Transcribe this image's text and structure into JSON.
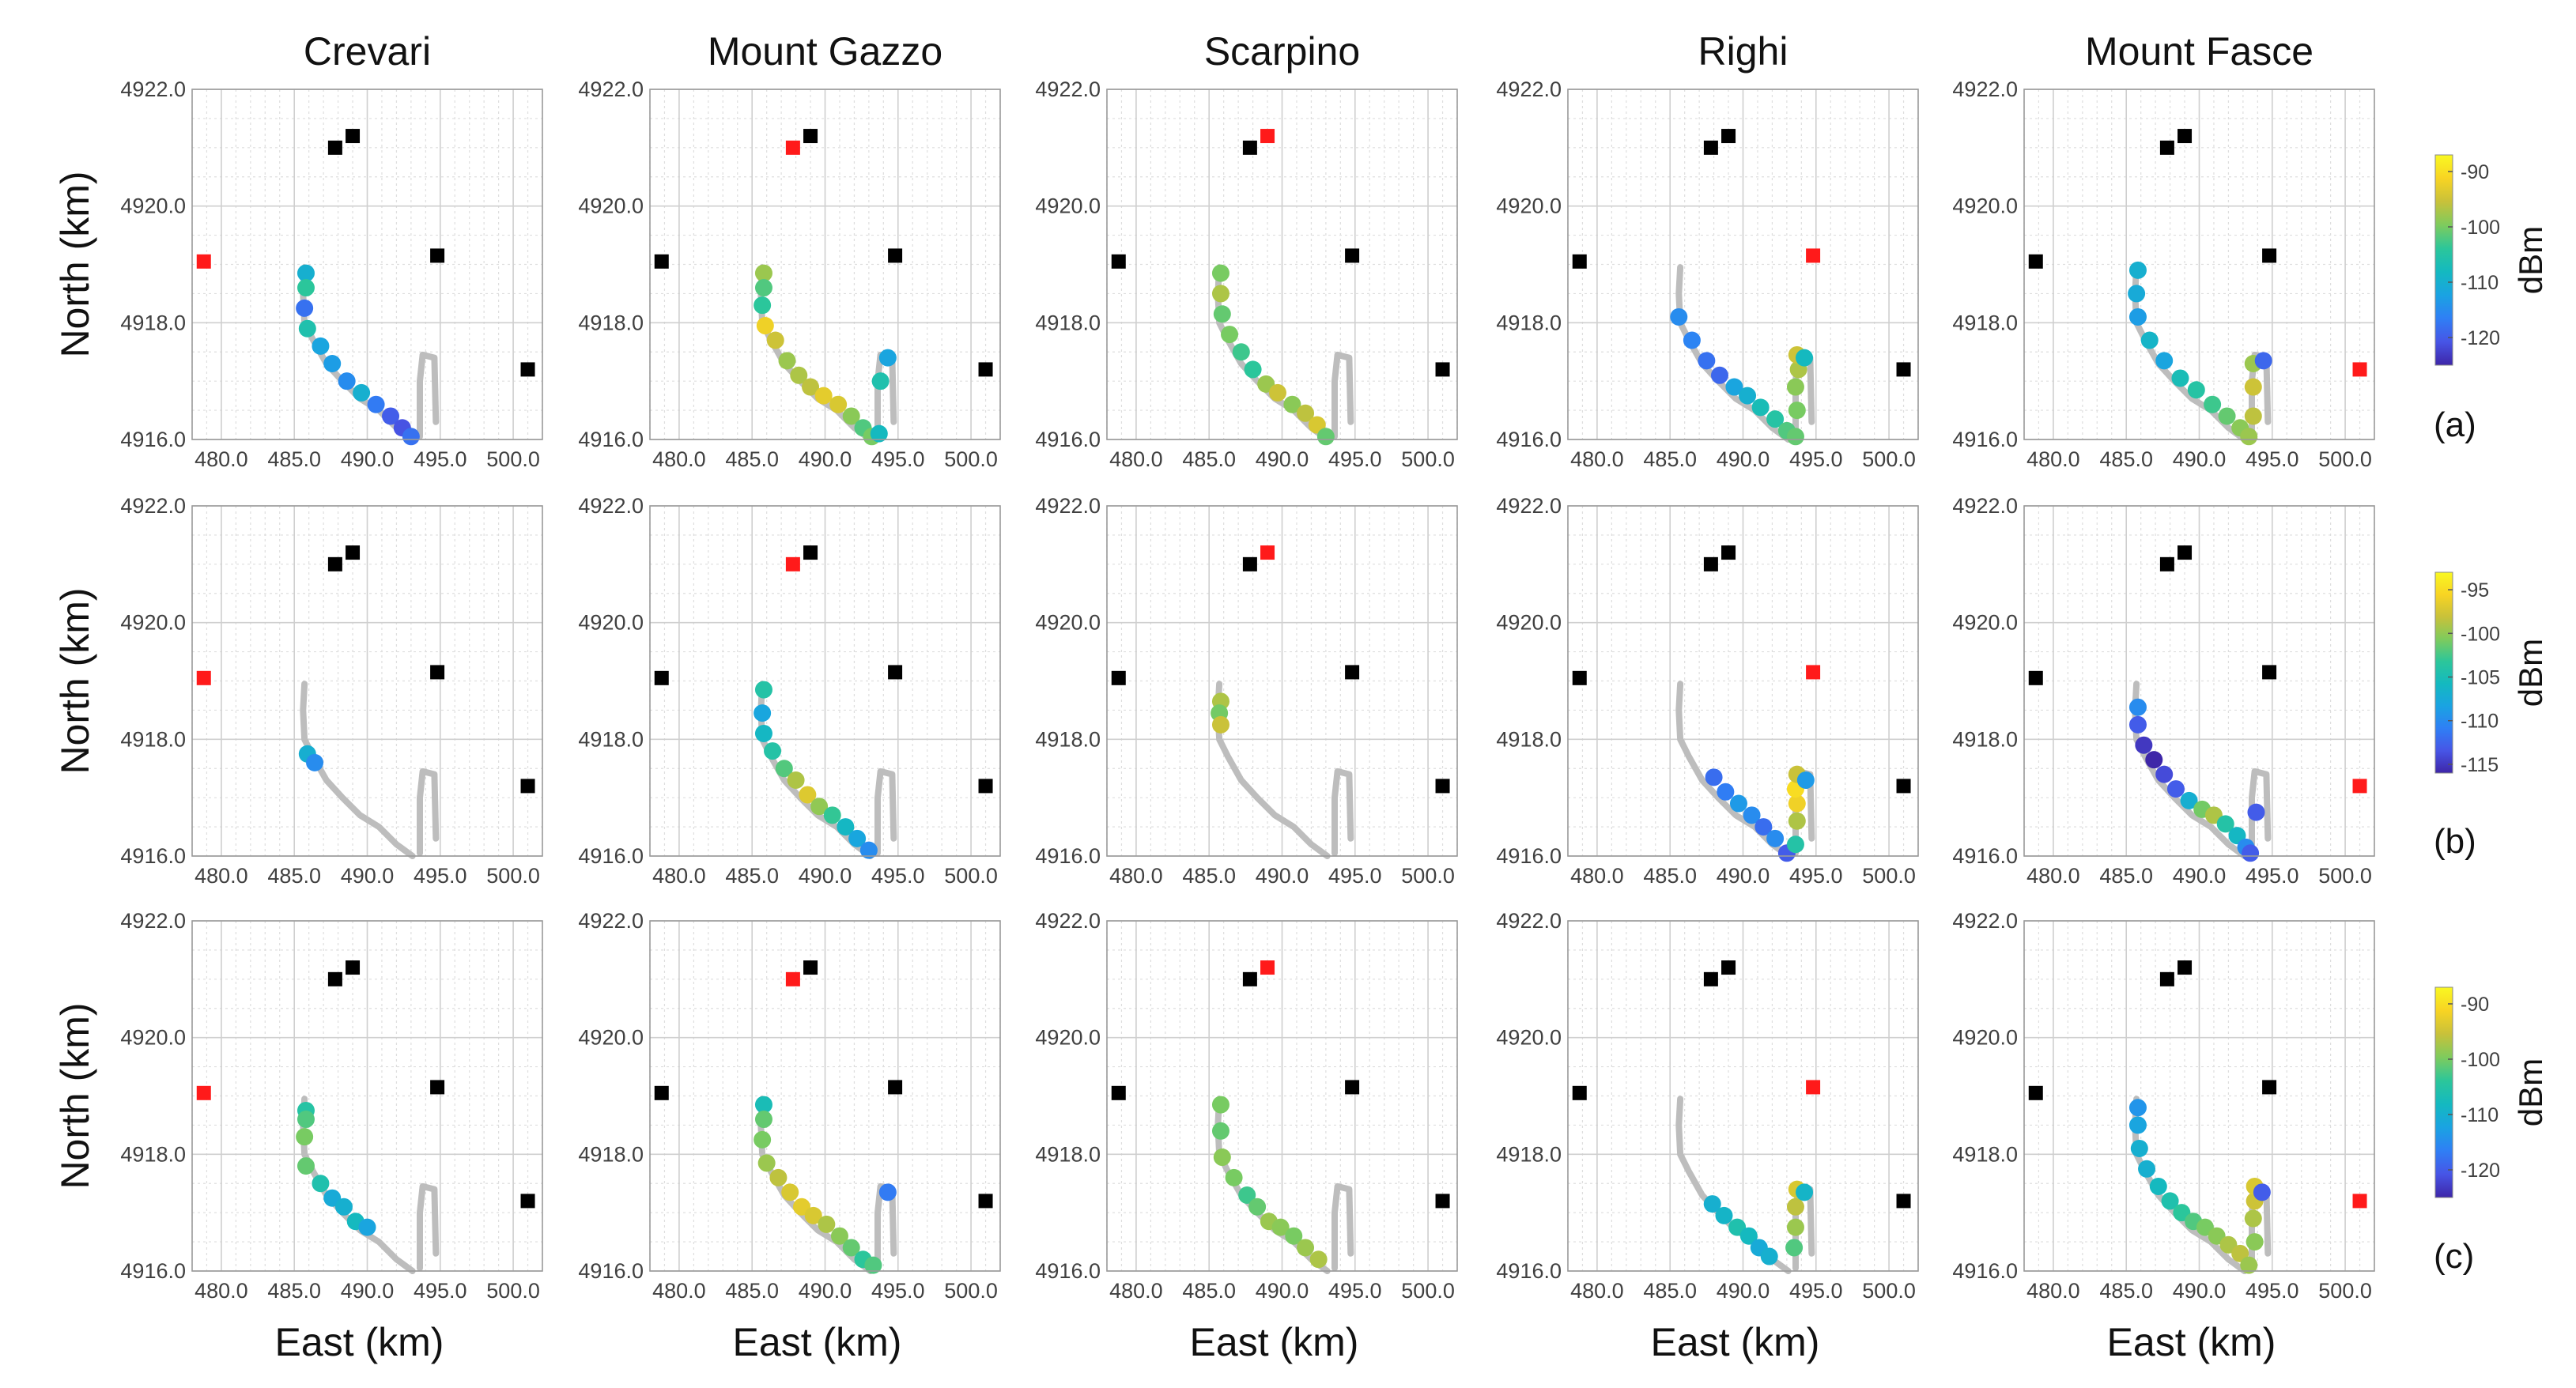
{
  "chart_data": {
    "type": "scatter",
    "description_kind": "received signal strength maps along a route, one panel per transmitter site and scenario",
    "columns": [
      "Crevari",
      "Mount Gazzo",
      "Scarpino",
      "Righi",
      "Mount Fasce"
    ],
    "rows": [
      {
        "label": "(a)",
        "colorbar": {
          "ticks": [
            -90,
            -100,
            -110,
            -120
          ],
          "min": -125,
          "max": -87,
          "unit": "dBm"
        }
      },
      {
        "label": "(b)",
        "colorbar": {
          "ticks": [
            -95,
            -100,
            -105,
            -110,
            -115
          ],
          "min": -116,
          "max": -93,
          "unit": "dBm"
        }
      },
      {
        "label": "(c)",
        "colorbar": {
          "ticks": [
            -90,
            -100,
            -110,
            -120
          ],
          "min": -125,
          "max": -87,
          "unit": "dBm"
        }
      }
    ],
    "xlabel": "East (km)",
    "ylabel": "North (km)",
    "xlim": [
      478.0,
      502.0
    ],
    "ylim": [
      4916.0,
      4922.0
    ],
    "xticks": [
      "480.0",
      "485.0",
      "490.0",
      "495.0",
      "500.0"
    ],
    "yticks": [
      "4922.0",
      "4920.0",
      "4918.0",
      "4916.0"
    ],
    "grid": true,
    "transmitters": [
      {
        "name": "Crevari",
        "x": 478.8,
        "y": 4919.05
      },
      {
        "name": "Mount Gazzo",
        "x": 487.8,
        "y": 4921.0
      },
      {
        "name": "Scarpino",
        "x": 489.0,
        "y": 4921.2
      },
      {
        "name": "Righi",
        "x": 494.8,
        "y": 4919.15
      },
      {
        "name": "Mount Fasce",
        "x": 501.0,
        "y": 4917.2
      }
    ],
    "route_main": [
      [
        485.7,
        4918.95
      ],
      [
        485.6,
        4918.5
      ],
      [
        485.7,
        4918.0
      ],
      [
        486.3,
        4917.7
      ],
      [
        487.2,
        4917.3
      ],
      [
        488.3,
        4917.0
      ],
      [
        489.5,
        4916.7
      ],
      [
        490.8,
        4916.5
      ],
      [
        492.0,
        4916.2
      ],
      [
        493.1,
        4916.0
      ]
    ],
    "route_branch": [
      [
        493.6,
        4916.05
      ],
      [
        493.6,
        4917.0
      ],
      [
        493.8,
        4917.45
      ],
      [
        494.6,
        4917.4
      ],
      [
        494.7,
        4916.3
      ]
    ],
    "series": [
      {
        "row": 0,
        "col": 0,
        "points": [
          [
            485.8,
            4918.85,
            -110
          ],
          [
            485.8,
            4918.6,
            -104
          ],
          [
            485.7,
            4918.25,
            -118
          ],
          [
            485.9,
            4917.9,
            -106
          ],
          [
            486.8,
            4917.6,
            -112
          ],
          [
            487.6,
            4917.3,
            -113
          ],
          [
            488.6,
            4917.0,
            -115
          ],
          [
            489.6,
            4916.8,
            -110
          ],
          [
            490.6,
            4916.6,
            -117
          ],
          [
            491.6,
            4916.4,
            -120
          ],
          [
            492.4,
            4916.2,
            -121
          ],
          [
            493.0,
            4916.05,
            -118
          ]
        ]
      },
      {
        "row": 0,
        "col": 1,
        "points": [
          [
            485.8,
            4918.85,
            -98
          ],
          [
            485.8,
            4918.6,
            -102
          ],
          [
            485.7,
            4918.3,
            -104
          ],
          [
            485.9,
            4917.95,
            -92
          ],
          [
            486.6,
            4917.7,
            -95
          ],
          [
            487.4,
            4917.35,
            -98
          ],
          [
            488.2,
            4917.1,
            -97
          ],
          [
            489.0,
            4916.9,
            -96
          ],
          [
            489.9,
            4916.75,
            -93
          ],
          [
            490.9,
            4916.6,
            -94
          ],
          [
            491.8,
            4916.4,
            -99
          ],
          [
            492.6,
            4916.2,
            -102
          ],
          [
            493.2,
            4916.05,
            -100
          ],
          [
            493.7,
            4916.1,
            -108
          ],
          [
            493.8,
            4917.0,
            -106
          ],
          [
            494.3,
            4917.4,
            -112
          ]
        ]
      },
      {
        "row": 0,
        "col": 2,
        "points": [
          [
            485.8,
            4918.85,
            -100
          ],
          [
            485.8,
            4918.5,
            -97
          ],
          [
            485.9,
            4918.15,
            -101
          ],
          [
            486.4,
            4917.8,
            -100
          ],
          [
            487.2,
            4917.5,
            -103
          ],
          [
            488.0,
            4917.2,
            -104
          ],
          [
            488.9,
            4916.95,
            -98
          ],
          [
            489.7,
            4916.8,
            -95
          ],
          [
            490.7,
            4916.6,
            -99
          ],
          [
            491.6,
            4916.45,
            -96
          ],
          [
            492.4,
            4916.25,
            -94
          ],
          [
            493.0,
            4916.05,
            -101
          ]
        ]
      },
      {
        "row": 0,
        "col": 3,
        "points": [
          [
            485.6,
            4918.1,
            -115
          ],
          [
            486.5,
            4917.7,
            -116
          ],
          [
            487.5,
            4917.35,
            -118
          ],
          [
            488.4,
            4917.1,
            -119
          ],
          [
            489.4,
            4916.9,
            -112
          ],
          [
            490.3,
            4916.75,
            -110
          ],
          [
            491.2,
            4916.55,
            -107
          ],
          [
            492.2,
            4916.35,
            -105
          ],
          [
            493.0,
            4916.15,
            -102
          ],
          [
            493.6,
            4916.05,
            -101
          ],
          [
            493.7,
            4916.5,
            -100
          ],
          [
            493.6,
            4916.9,
            -99
          ],
          [
            493.8,
            4917.2,
            -97
          ],
          [
            493.7,
            4917.45,
            -95
          ],
          [
            494.2,
            4917.4,
            -108
          ]
        ]
      },
      {
        "row": 0,
        "col": 4,
        "points": [
          [
            485.8,
            4918.9,
            -110
          ],
          [
            485.7,
            4918.5,
            -111
          ],
          [
            485.8,
            4918.1,
            -113
          ],
          [
            486.6,
            4917.7,
            -109
          ],
          [
            487.6,
            4917.35,
            -112
          ],
          [
            488.7,
            4917.05,
            -107
          ],
          [
            489.8,
            4916.85,
            -105
          ],
          [
            490.9,
            4916.6,
            -103
          ],
          [
            491.9,
            4916.4,
            -101
          ],
          [
            492.8,
            4916.2,
            -99
          ],
          [
            493.4,
            4916.05,
            -98
          ],
          [
            493.7,
            4916.4,
            -96
          ],
          [
            493.7,
            4916.9,
            -95
          ],
          [
            493.7,
            4917.3,
            -98
          ],
          [
            494.4,
            4917.35,
            -119
          ]
        ]
      },
      {
        "row": 1,
        "col": 0,
        "points": [
          [
            485.9,
            4917.75,
            -107
          ],
          [
            486.4,
            4917.6,
            -110
          ]
        ]
      },
      {
        "row": 1,
        "col": 1,
        "points": [
          [
            485.8,
            4918.85,
            -104
          ],
          [
            485.7,
            4918.45,
            -108
          ],
          [
            485.8,
            4918.1,
            -106
          ],
          [
            486.4,
            4917.8,
            -104
          ],
          [
            487.2,
            4917.5,
            -102
          ],
          [
            488.0,
            4917.3,
            -99
          ],
          [
            488.8,
            4917.05,
            -97
          ],
          [
            489.6,
            4916.85,
            -100
          ],
          [
            490.5,
            4916.7,
            -103
          ],
          [
            491.4,
            4916.5,
            -106
          ],
          [
            492.2,
            4916.3,
            -108
          ],
          [
            493.0,
            4916.1,
            -110
          ]
        ]
      },
      {
        "row": 1,
        "col": 2,
        "points": [
          [
            485.8,
            4918.65,
            -99
          ],
          [
            485.7,
            4918.45,
            -101
          ],
          [
            485.8,
            4918.25,
            -98
          ]
        ]
      },
      {
        "row": 1,
        "col": 3,
        "points": [
          [
            488.0,
            4917.35,
            -112
          ],
          [
            488.8,
            4917.1,
            -111
          ],
          [
            489.7,
            4916.9,
            -109
          ],
          [
            490.6,
            4916.7,
            -110
          ],
          [
            491.4,
            4916.5,
            -112
          ],
          [
            492.2,
            4916.3,
            -110
          ],
          [
            493.0,
            4916.05,
            -113
          ],
          [
            493.6,
            4916.2,
            -104
          ],
          [
            493.7,
            4916.6,
            -99
          ],
          [
            493.7,
            4916.9,
            -96
          ],
          [
            493.6,
            4917.15,
            -95
          ],
          [
            493.7,
            4917.4,
            -98
          ],
          [
            494.3,
            4917.3,
            -109
          ]
        ]
      },
      {
        "row": 1,
        "col": 4,
        "points": [
          [
            485.8,
            4918.55,
            -110
          ],
          [
            485.8,
            4918.25,
            -113
          ],
          [
            486.2,
            4917.9,
            -115
          ],
          [
            486.9,
            4917.65,
            -116
          ],
          [
            487.6,
            4917.4,
            -114
          ],
          [
            488.4,
            4917.15,
            -113
          ],
          [
            489.3,
            4916.95,
            -107
          ],
          [
            490.2,
            4916.8,
            -101
          ],
          [
            491.0,
            4916.7,
            -99
          ],
          [
            491.8,
            4916.55,
            -104
          ],
          [
            492.6,
            4916.35,
            -106
          ],
          [
            493.2,
            4916.15,
            -110
          ],
          [
            493.5,
            4916.05,
            -113
          ],
          [
            493.9,
            4916.75,
            -113
          ]
        ]
      },
      {
        "row": 2,
        "col": 0,
        "points": [
          [
            485.8,
            4918.75,
            -105
          ],
          [
            485.8,
            4918.6,
            -102
          ],
          [
            485.7,
            4918.3,
            -100
          ],
          [
            485.8,
            4917.8,
            -101
          ],
          [
            486.8,
            4917.5,
            -106
          ],
          [
            487.6,
            4917.25,
            -111
          ],
          [
            488.4,
            4917.1,
            -110
          ],
          [
            489.2,
            4916.85,
            -108
          ],
          [
            490.0,
            4916.75,
            -112
          ]
        ]
      },
      {
        "row": 2,
        "col": 1,
        "points": [
          [
            485.8,
            4918.85,
            -107
          ],
          [
            485.8,
            4918.6,
            -101
          ],
          [
            485.7,
            4918.25,
            -100
          ],
          [
            486.0,
            4917.85,
            -98
          ],
          [
            486.8,
            4917.6,
            -96
          ],
          [
            487.6,
            4917.35,
            -94
          ],
          [
            488.4,
            4917.1,
            -93
          ],
          [
            489.2,
            4916.95,
            -94
          ],
          [
            490.1,
            4916.8,
            -97
          ],
          [
            491.0,
            4916.6,
            -99
          ],
          [
            491.8,
            4916.4,
            -101
          ],
          [
            492.6,
            4916.2,
            -104
          ],
          [
            493.3,
            4916.1,
            -102
          ],
          [
            494.3,
            4917.35,
            -117
          ]
        ]
      },
      {
        "row": 2,
        "col": 2,
        "points": [
          [
            485.8,
            4918.85,
            -100
          ],
          [
            485.8,
            4918.4,
            -101
          ],
          [
            485.9,
            4917.95,
            -99
          ],
          [
            486.7,
            4917.6,
            -100
          ],
          [
            487.6,
            4917.3,
            -103
          ],
          [
            488.3,
            4917.1,
            -101
          ],
          [
            489.1,
            4916.85,
            -98
          ],
          [
            489.9,
            4916.75,
            -99
          ],
          [
            490.8,
            4916.6,
            -100
          ],
          [
            491.6,
            4916.4,
            -98
          ],
          [
            492.5,
            4916.2,
            -97
          ]
        ]
      },
      {
        "row": 2,
        "col": 3,
        "points": [
          [
            487.9,
            4917.15,
            -110
          ],
          [
            488.7,
            4916.95,
            -109
          ],
          [
            489.6,
            4916.75,
            -106
          ],
          [
            490.4,
            4916.6,
            -108
          ],
          [
            491.1,
            4916.4,
            -111
          ],
          [
            491.8,
            4916.25,
            -110
          ],
          [
            493.5,
            4916.4,
            -102
          ],
          [
            493.6,
            4916.75,
            -98
          ],
          [
            493.6,
            4917.1,
            -96
          ],
          [
            493.7,
            4917.4,
            -94
          ],
          [
            494.2,
            4917.35,
            -109
          ]
        ]
      },
      {
        "row": 2,
        "col": 4,
        "points": [
          [
            485.8,
            4918.8,
            -114
          ],
          [
            485.8,
            4918.5,
            -112
          ],
          [
            485.9,
            4918.1,
            -110
          ],
          [
            486.4,
            4917.75,
            -110
          ],
          [
            487.2,
            4917.45,
            -108
          ],
          [
            488.0,
            4917.2,
            -106
          ],
          [
            488.8,
            4917.0,
            -104
          ],
          [
            489.6,
            4916.85,
            -102
          ],
          [
            490.4,
            4916.75,
            -100
          ],
          [
            491.2,
            4916.6,
            -99
          ],
          [
            492.0,
            4916.45,
            -97
          ],
          [
            492.8,
            4916.3,
            -96
          ],
          [
            493.4,
            4916.1,
            -98
          ],
          [
            493.8,
            4916.5,
            -99
          ],
          [
            493.7,
            4916.9,
            -97
          ],
          [
            493.8,
            4917.2,
            -95
          ],
          [
            493.8,
            4917.45,
            -94
          ],
          [
            494.3,
            4917.35,
            -120
          ]
        ]
      }
    ]
  }
}
